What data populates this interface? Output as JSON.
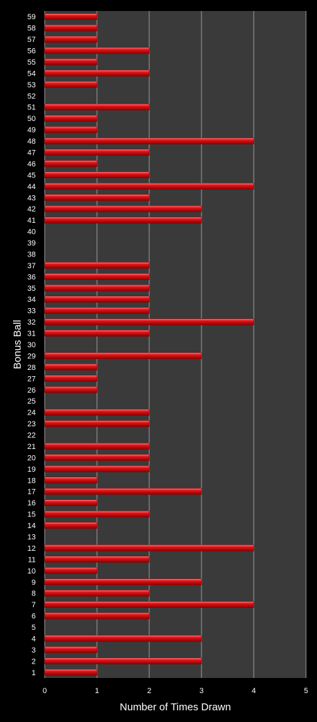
{
  "chart_data": {
    "type": "bar",
    "orientation": "horizontal",
    "xlabel": "Number of Times Drawn",
    "ylabel": "Bonus Ball",
    "xlim": [
      0,
      5
    ],
    "xticks": [
      0,
      1,
      2,
      3,
      4,
      5
    ],
    "grid": "vertical",
    "categories": [
      "1",
      "2",
      "3",
      "4",
      "5",
      "6",
      "7",
      "8",
      "9",
      "10",
      "11",
      "12",
      "13",
      "14",
      "15",
      "16",
      "17",
      "18",
      "19",
      "20",
      "21",
      "22",
      "23",
      "24",
      "25",
      "26",
      "27",
      "28",
      "29",
      "30",
      "31",
      "32",
      "33",
      "34",
      "35",
      "36",
      "37",
      "38",
      "39",
      "40",
      "41",
      "42",
      "43",
      "44",
      "45",
      "46",
      "47",
      "48",
      "49",
      "50",
      "51",
      "52",
      "53",
      "54",
      "55",
      "56",
      "57",
      "58",
      "59"
    ],
    "values": [
      1,
      3,
      1,
      3,
      0,
      2,
      4,
      2,
      3,
      1,
      2,
      4,
      0,
      1,
      2,
      1,
      3,
      1,
      2,
      2,
      2,
      0,
      2,
      2,
      0,
      1,
      1,
      1,
      3,
      0,
      2,
      4,
      2,
      2,
      2,
      2,
      2,
      0,
      0,
      0,
      3,
      3,
      2,
      4,
      2,
      1,
      2,
      4,
      1,
      1,
      2,
      0,
      1,
      2,
      1,
      2,
      1,
      1,
      1
    ],
    "colors": {
      "background": "#000000",
      "plot_area": "#3a3a3a",
      "gridline": "#9a9a9a",
      "bar": "#e0141a",
      "bar_highlight": "#ff7a7a",
      "bar_shadow": "#8a0000",
      "text": "#ffffff"
    }
  }
}
